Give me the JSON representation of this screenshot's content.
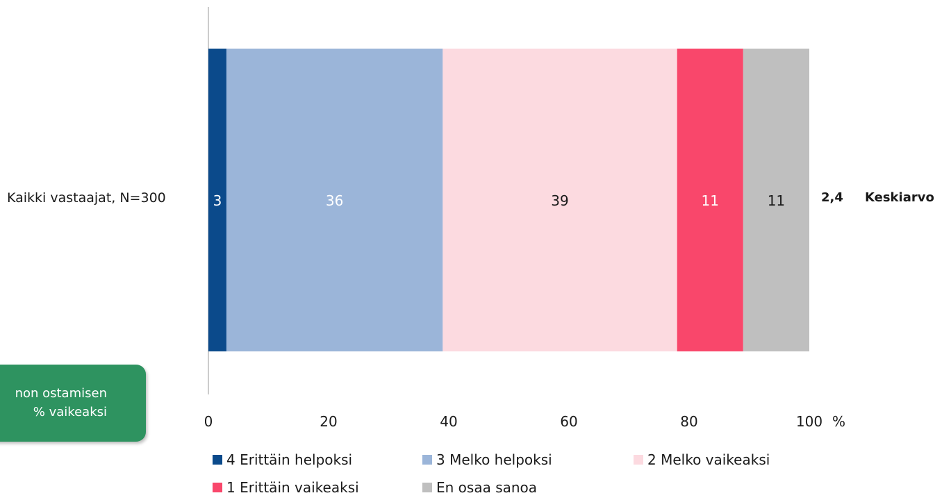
{
  "callout": {
    "line1": "non ostamisen",
    "line2": "% vaikeaksi"
  },
  "mean_label": "Keskiarvo",
  "x_unit": "%",
  "chart_data": {
    "type": "bar",
    "orientation": "horizontal",
    "stacked": true,
    "categories": [
      "Kaikki vastaajat, N=300"
    ],
    "series": [
      {
        "name": "4 Erittäin helpoksi",
        "values": [
          3
        ],
        "color": "#0b4a8b",
        "label_color": "#ffffff"
      },
      {
        "name": "3 Melko helpoksi",
        "values": [
          36
        ],
        "color": "#9bb5d9",
        "label_color": "#ffffff"
      },
      {
        "name": "2 Melko vaikeaksi",
        "values": [
          39
        ],
        "color": "#fcdae0",
        "label_color": "#1a1a1a"
      },
      {
        "name": "1 Erittäin vaikeaksi",
        "values": [
          11
        ],
        "color": "#f9476b",
        "label_color": "#ffffff"
      },
      {
        "name": "En osaa sanoa",
        "values": [
          11
        ],
        "color": "#bfbfbf",
        "label_color": "#1a1a1a"
      }
    ],
    "mean": [
      "2,4"
    ],
    "xlim": [
      0,
      100
    ],
    "xticks": [
      "0",
      "20",
      "40",
      "60",
      "80",
      "100"
    ],
    "legend_position": "bottom"
  }
}
